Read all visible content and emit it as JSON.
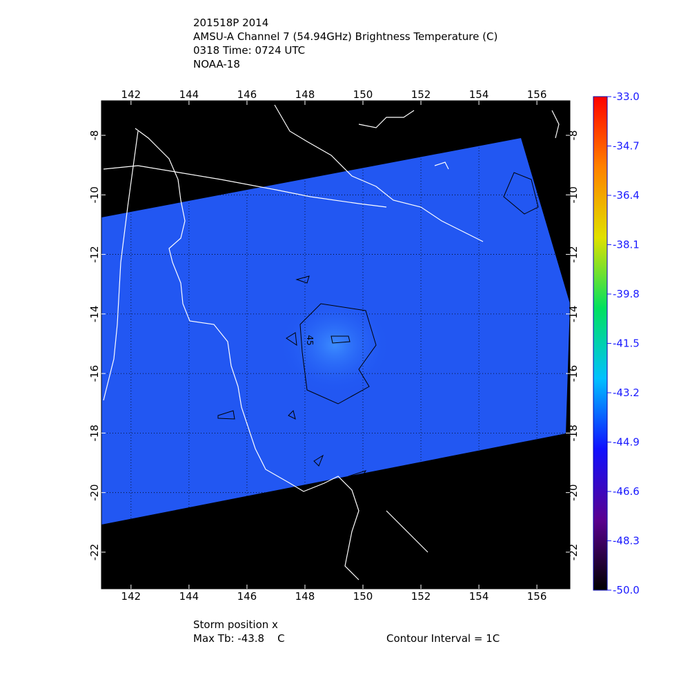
{
  "chart_data": {
    "type": "map",
    "title": [
      "201518P 2014",
      "AMSU-A Channel 7 (54.94GHz) Brightness Temperature (C)",
      "0318 Time: 0724 UTC",
      "NOAA-18"
    ],
    "xlim": [
      140.98,
      157.14
    ],
    "xticks": [
      142,
      144,
      146,
      148,
      150,
      152,
      154,
      156
    ],
    "ylim": [
      -23.23,
      -6.84
    ],
    "yticks": [
      -8,
      -10,
      -12,
      -14,
      -16,
      -18,
      -20,
      -22
    ],
    "grid": true,
    "colorbar": {
      "lim": [
        -50,
        -33
      ],
      "ticks": [
        {
          "value": -33,
          "label": "-33.0"
        },
        -34.7,
        -36.4,
        -38.1,
        -39.8,
        -41.5,
        -43.2,
        -44.9,
        -46.6,
        -48.3,
        {
          "value": -50,
          "label": "-50.0"
        }
      ],
      "colors": [
        "#000000",
        "#5a0090",
        "#1010ff",
        "#00c0ff",
        "#00e060",
        "#e0e000",
        "#ff8000",
        "#ff0000"
      ]
    },
    "contour_labels": [
      "45"
    ],
    "footer": [
      "Storm position x",
      "Max Tb: -43.8    C",
      "Contour Interval = 1C"
    ]
  }
}
